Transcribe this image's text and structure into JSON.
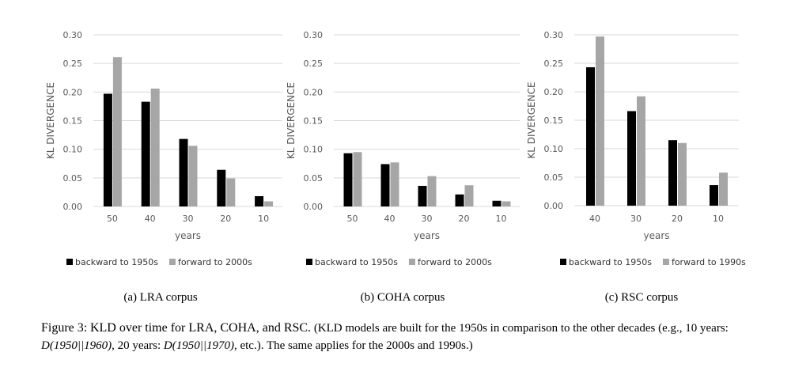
{
  "colors": {
    "backward": "#000000",
    "forward": "#a6a6a6",
    "grid": "#d9d9d9",
    "axis_text": "#595959"
  },
  "chart_data": [
    {
      "type": "bar",
      "subcaption": "(a) LRA corpus",
      "xlabel": "years",
      "ylabel": "KL DIVERGENCE",
      "ylim": [
        0,
        0.3
      ],
      "yticks": [
        "0.00",
        "0.05",
        "0.10",
        "0.15",
        "0.20",
        "0.25",
        "0.30"
      ],
      "grid": true,
      "legend_position": "bottom",
      "categories": [
        "50",
        "40",
        "30",
        "20",
        "10"
      ],
      "series": [
        {
          "name": "backward to 1950s",
          "values": [
            0.197,
            0.183,
            0.118,
            0.064,
            0.018
          ]
        },
        {
          "name": "forward to 2000s",
          "values": [
            0.261,
            0.206,
            0.106,
            0.049,
            0.009
          ]
        }
      ]
    },
    {
      "type": "bar",
      "subcaption": "(b) COHA corpus",
      "xlabel": "years",
      "ylabel": "KL DIVERGENCE",
      "ylim": [
        0,
        0.3
      ],
      "yticks": [
        "0.00",
        "0.05",
        "0.10",
        "0.15",
        "0.20",
        "0.25",
        "0.30"
      ],
      "grid": true,
      "legend_position": "bottom",
      "categories": [
        "50",
        "40",
        "30",
        "20",
        "10"
      ],
      "series": [
        {
          "name": "backward to 1950s",
          "values": [
            0.093,
            0.074,
            0.036,
            0.021,
            0.01
          ]
        },
        {
          "name": "forward to 2000s",
          "values": [
            0.095,
            0.077,
            0.053,
            0.037,
            0.009
          ]
        }
      ]
    },
    {
      "type": "bar",
      "subcaption": "(c) RSC corpus",
      "xlabel": "years",
      "ylabel": "KL DIVERGENCE",
      "ylim": [
        0,
        0.3
      ],
      "yticks": [
        "0.00",
        "0.05",
        "0.10",
        "0.15",
        "0.20",
        "0.25",
        "0.30"
      ],
      "grid": true,
      "legend_position": "bottom",
      "categories": [
        "40",
        "30",
        "20",
        "10"
      ],
      "series": [
        {
          "name": "backward to 1950s",
          "values": [
            0.243,
            0.166,
            0.115,
            0.036
          ]
        },
        {
          "name": "forward to 1990s",
          "values": [
            0.297,
            0.192,
            0.11,
            0.058
          ]
        }
      ]
    }
  ],
  "caption": {
    "label": "Figure 3:",
    "main": "KLD over time for LRA, COHA, and RSC.",
    "note_part1": "(KLD models are built for the 1950s in comparison to the other decades (e.g., 10 years: ",
    "math1": "D(1950||1960)",
    "note_part2": ", 20 years: ",
    "math2": "D(1950||1970)",
    "note_part3": ", etc.). The same applies for the 2000s and 1990s.)"
  }
}
